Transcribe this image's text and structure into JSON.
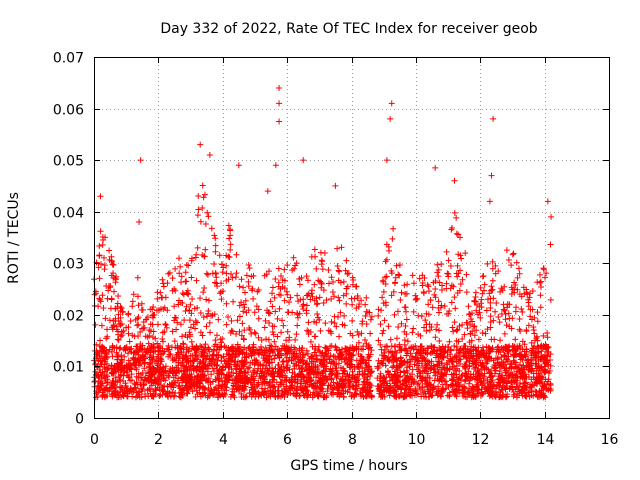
{
  "chart_data": {
    "type": "scatter",
    "title": "Day 332 of 2022, Rate Of TEC Index for receiver geob",
    "xlabel": "GPS time / hours",
    "ylabel": "ROTI / TECUs",
    "xlim": [
      0,
      16
    ],
    "ylim": [
      0,
      0.07
    ],
    "x_ticks": [
      "0",
      "2",
      "4",
      "6",
      "8",
      "10",
      "12",
      "14",
      "16"
    ],
    "y_ticks": [
      "0",
      "0.01",
      "0.02",
      "0.03",
      "0.04",
      "0.05",
      "0.06",
      "0.07"
    ],
    "grid": true,
    "marker": "+",
    "series_color": "#ff0000",
    "data_gap": [
      8.65,
      8.8
    ],
    "x_range_of_data": [
      0.0,
      14.2
    ],
    "notable_points": [
      {
        "x": 0.2,
        "y": 0.043
      },
      {
        "x": 1.45,
        "y": 0.05
      },
      {
        "x": 1.4,
        "y": 0.038
      },
      {
        "x": 3.3,
        "y": 0.053
      },
      {
        "x": 3.6,
        "y": 0.051
      },
      {
        "x": 4.5,
        "y": 0.049
      },
      {
        "x": 5.4,
        "y": 0.044
      },
      {
        "x": 5.75,
        "y": 0.064
      },
      {
        "x": 5.75,
        "y": 0.061
      },
      {
        "x": 5.75,
        "y": 0.0575
      },
      {
        "x": 5.65,
        "y": 0.049
      },
      {
        "x": 6.5,
        "y": 0.05
      },
      {
        "x": 7.5,
        "y": 0.045
      },
      {
        "x": 9.25,
        "y": 0.061
      },
      {
        "x": 9.2,
        "y": 0.058
      },
      {
        "x": 9.1,
        "y": 0.05
      },
      {
        "x": 10.6,
        "y": 0.0485
      },
      {
        "x": 11.2,
        "y": 0.046
      },
      {
        "x": 12.4,
        "y": 0.058
      },
      {
        "x": 12.35,
        "y": 0.047
      },
      {
        "x": 12.3,
        "y": 0.042
      },
      {
        "x": 14.1,
        "y": 0.042
      },
      {
        "x": 14.2,
        "y": 0.039
      }
    ],
    "envelope": [
      [
        0.0,
        0.027
      ],
      [
        0.2,
        0.038
      ],
      [
        0.4,
        0.035
      ],
      [
        0.6,
        0.032
      ],
      [
        0.8,
        0.022
      ],
      [
        1.0,
        0.02
      ],
      [
        1.2,
        0.024
      ],
      [
        1.4,
        0.028
      ],
      [
        1.6,
        0.019
      ],
      [
        1.8,
        0.022
      ],
      [
        2.0,
        0.025
      ],
      [
        2.2,
        0.028
      ],
      [
        2.4,
        0.031
      ],
      [
        2.6,
        0.035
      ],
      [
        2.8,
        0.03
      ],
      [
        3.0,
        0.034
      ],
      [
        3.2,
        0.043
      ],
      [
        3.4,
        0.046
      ],
      [
        3.6,
        0.042
      ],
      [
        3.8,
        0.034
      ],
      [
        4.0,
        0.03
      ],
      [
        4.2,
        0.038
      ],
      [
        4.4,
        0.033
      ],
      [
        4.6,
        0.027
      ],
      [
        4.8,
        0.03
      ],
      [
        5.0,
        0.027
      ],
      [
        5.2,
        0.026
      ],
      [
        5.4,
        0.03
      ],
      [
        5.6,
        0.028
      ],
      [
        5.8,
        0.031
      ],
      [
        6.0,
        0.035
      ],
      [
        6.2,
        0.032
      ],
      [
        6.4,
        0.028
      ],
      [
        6.6,
        0.03
      ],
      [
        6.8,
        0.033
      ],
      [
        7.0,
        0.032
      ],
      [
        7.2,
        0.033
      ],
      [
        7.4,
        0.03
      ],
      [
        7.6,
        0.034
      ],
      [
        7.8,
        0.032
      ],
      [
        8.0,
        0.03
      ],
      [
        8.2,
        0.028
      ],
      [
        8.4,
        0.024
      ],
      [
        8.6,
        0.022
      ],
      [
        8.8,
        0.02
      ],
      [
        9.0,
        0.028
      ],
      [
        9.2,
        0.04
      ],
      [
        9.4,
        0.034
      ],
      [
        9.6,
        0.028
      ],
      [
        9.8,
        0.026
      ],
      [
        10.0,
        0.03
      ],
      [
        10.2,
        0.028
      ],
      [
        10.4,
        0.026
      ],
      [
        10.6,
        0.03
      ],
      [
        10.8,
        0.031
      ],
      [
        11.0,
        0.034
      ],
      [
        11.2,
        0.04
      ],
      [
        11.4,
        0.038
      ],
      [
        11.6,
        0.03
      ],
      [
        11.8,
        0.024
      ],
      [
        12.0,
        0.026
      ],
      [
        12.2,
        0.03
      ],
      [
        12.4,
        0.034
      ],
      [
        12.6,
        0.028
      ],
      [
        12.8,
        0.033
      ],
      [
        13.0,
        0.036
      ],
      [
        13.2,
        0.03
      ],
      [
        13.4,
        0.025
      ],
      [
        13.6,
        0.026
      ],
      [
        13.8,
        0.027
      ],
      [
        14.0,
        0.03
      ],
      [
        14.2,
        0.037
      ]
    ],
    "baseline_band": [
      0.004,
      0.014
    ]
  }
}
